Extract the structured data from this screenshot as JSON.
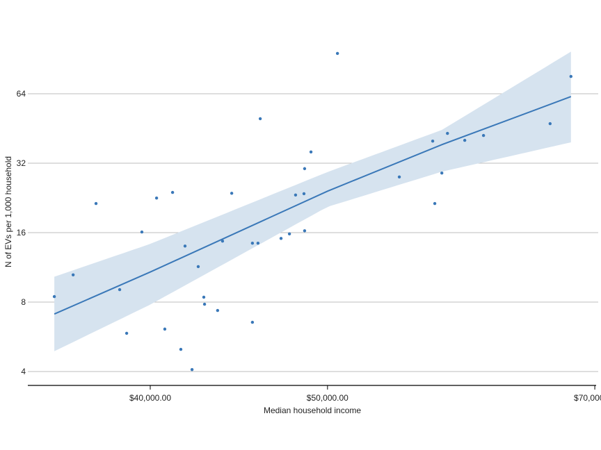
{
  "chart_data": {
    "type": "scatter",
    "title": "",
    "xlabel": "Median household income",
    "ylabel": "N of EVs per 1,000 household",
    "x_scale": "log",
    "y_scale": "log2",
    "xlim": [
      33500,
      70200
    ],
    "ylim": [
      3.7,
      120
    ],
    "x_ticks": [
      {
        "value": 40000,
        "label": "$40,000.00"
      },
      {
        "value": 50000,
        "label": "$50,000.00"
      },
      {
        "value": 70000,
        "label": "$70,000.00"
      }
    ],
    "y_ticks": [
      {
        "value": 4,
        "label": "4"
      },
      {
        "value": 8,
        "label": "8"
      },
      {
        "value": 16,
        "label": "16"
      },
      {
        "value": 32,
        "label": "32"
      },
      {
        "value": 64,
        "label": "64"
      }
    ],
    "grid": "horizontal",
    "colors": {
      "points": "#3a78b8",
      "fit_line": "#3a78b8",
      "band": "#d6e3ef",
      "grid": "#bdbdbd",
      "axis": "#000000"
    },
    "points": [
      [
        35450,
        8.45
      ],
      [
        36300,
        10.5
      ],
      [
        37360,
        21.4
      ],
      [
        38490,
        9.06
      ],
      [
        38830,
        5.86
      ],
      [
        39580,
        16.1
      ],
      [
        40320,
        22.6
      ],
      [
        40740,
        6.11
      ],
      [
        41140,
        23.9
      ],
      [
        41570,
        4.99
      ],
      [
        41790,
        14.0
      ],
      [
        42160,
        4.08
      ],
      [
        42490,
        11.4
      ],
      [
        42790,
        8.4
      ],
      [
        42830,
        7.83
      ],
      [
        43540,
        7.36
      ],
      [
        43810,
        14.7
      ],
      [
        44320,
        23.7
      ],
      [
        45490,
        14.4
      ],
      [
        45490,
        6.54
      ],
      [
        45810,
        14.4
      ],
      [
        45940,
        49.9
      ],
      [
        47160,
        15.1
      ],
      [
        47660,
        15.8
      ],
      [
        48030,
        23.3
      ],
      [
        48540,
        23.6
      ],
      [
        48580,
        30.3
      ],
      [
        48580,
        16.3
      ],
      [
        48970,
        35.8
      ],
      [
        50630,
        95.7
      ],
      [
        54730,
        27.9
      ],
      [
        57080,
        39.9
      ],
      [
        57230,
        21.4
      ],
      [
        57740,
        29.0
      ],
      [
        58150,
        43.1
      ],
      [
        59430,
        40.2
      ],
      [
        60850,
        42.2
      ],
      [
        66170,
        47.5
      ],
      [
        67930,
        76.1
      ]
    ],
    "fit": {
      "x": [
        35450,
        40000,
        50000,
        57740,
        67930
      ],
      "y": [
        7.1,
        10.8,
        24.2,
        38.5,
        62.2
      ],
      "ci_lower": [
        4.9,
        7.8,
        20.7,
        29.4,
        39.4
      ],
      "ci_upper": [
        10.3,
        14.3,
        29.3,
        44.6,
        97.4
      ]
    }
  }
}
